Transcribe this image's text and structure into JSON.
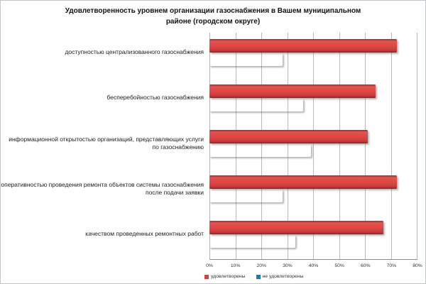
{
  "title": "Удовлетворенность уровнем организации газоснабжения в Вашем муниципальном районе (городском округе)",
  "chart_data": {
    "type": "bar",
    "orientation": "horizontal",
    "title": "Удовлетворенность уровнем организации газоснабжения в Вашем муниципальном районе (городском округе)",
    "categories": [
      "доступностью централизованного газоснабжения",
      "бесперебойностью газоснабжения",
      "информационной открытостью организаций, представляющих услуги по газоснабжению",
      "оперативностью проведения ремонта объектов системы газоснабжения после подачи заявки",
      "качеством проведенных ремонтных работ"
    ],
    "series": [
      {
        "name": "удовлетворены",
        "color": "#d8403c",
        "values": [
          72,
          64,
          61,
          72,
          67
        ]
      },
      {
        "name": "не удовлетворены",
        "color": "#1a78bd",
        "values": [
          28,
          36,
          39,
          28,
          33
        ]
      }
    ],
    "xlim": [
      0,
      80
    ],
    "x_ticks": [
      "0%",
      "10%",
      "20%",
      "30%",
      "40%",
      "50%",
      "60%",
      "70%",
      "80%"
    ],
    "grid": true,
    "legend_position": "bottom",
    "colors": {
      "satisfied": "#d8403c",
      "not_satisfied": "#1a78bd",
      "gridline": "#b9b9b9",
      "axis_line": "#848a92",
      "title_text": "#111111",
      "label_text": "#1c1c1c"
    }
  }
}
